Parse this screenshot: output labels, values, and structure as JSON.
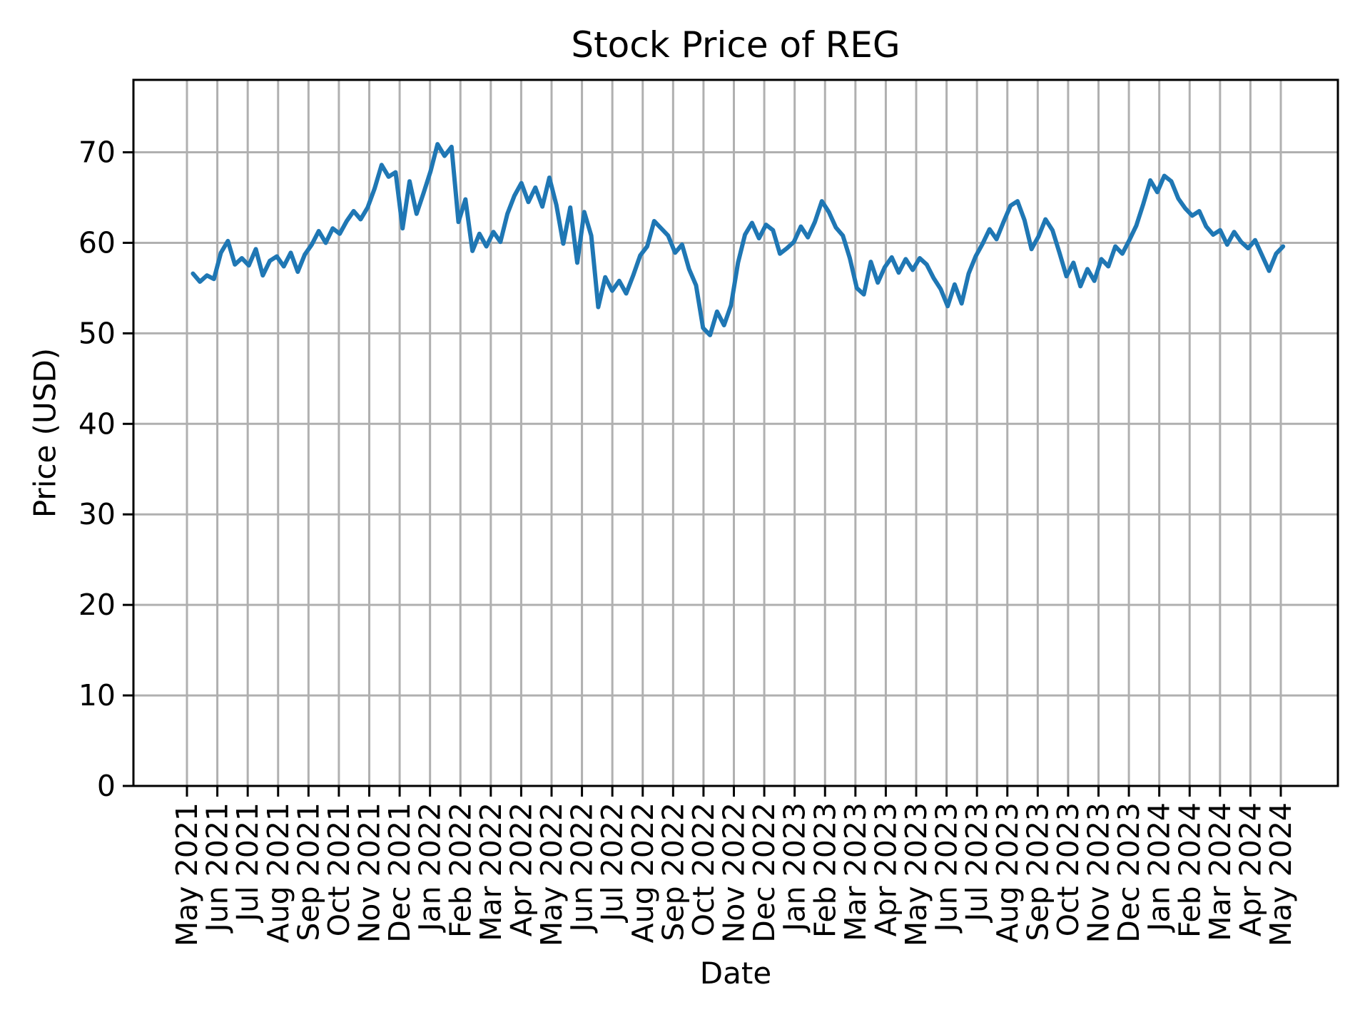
{
  "figure": {
    "title": "Stock Price of REG",
    "xlabel": "Date",
    "ylabel": "Price (USD)"
  },
  "style": {
    "background": "#ffffff",
    "line_color": "#1f77b4",
    "grid_color": "#b0b0b0",
    "axis_color": "#000000",
    "text_color": "#000000"
  },
  "chart_data": {
    "type": "line",
    "title": "Stock Price of REG",
    "xlabel": "Date",
    "ylabel": "Price (USD)",
    "ylim": [
      0,
      78
    ],
    "yticks": [
      0,
      10,
      20,
      30,
      40,
      50,
      60,
      70
    ],
    "grid": true,
    "legend_position": "none",
    "xtick_labels": [
      "May 2021",
      "Jun 2021",
      "Jul 2021",
      "Aug 2021",
      "Sep 2021",
      "Oct 2021",
      "Nov 2021",
      "Dec 2021",
      "Jan 2022",
      "Feb 2022",
      "Mar 2022",
      "Apr 2022",
      "May 2022",
      "Jun 2022",
      "Jul 2022",
      "Aug 2022",
      "Sep 2022",
      "Oct 2022",
      "Nov 2022",
      "Dec 2022",
      "Jan 2023",
      "Feb 2023",
      "Mar 2023",
      "Apr 2023",
      "May 2023",
      "Jun 2023",
      "Jul 2023",
      "Aug 2023",
      "Sep 2023",
      "Oct 2023",
      "Nov 2023",
      "Dec 2023",
      "Jan 2024",
      "Feb 2024",
      "Mar 2024",
      "Apr 2024",
      "May 2024"
    ],
    "x_first_point": "2021-05-07",
    "x_step_days": 7,
    "n_points": 157,
    "series": [
      {
        "name": "REG",
        "color": "#1f77b4",
        "values": [
          56.6,
          55.7,
          56.4,
          56.0,
          58.9,
          60.2,
          57.6,
          58.3,
          57.5,
          59.3,
          56.4,
          58.0,
          58.5,
          57.4,
          58.9,
          56.8,
          58.7,
          59.8,
          61.3,
          60.0,
          61.6,
          61.0,
          62.4,
          63.5,
          62.6,
          63.9,
          66.0,
          68.6,
          67.3,
          67.8,
          61.6,
          66.8,
          63.2,
          65.5,
          67.9,
          70.9,
          69.6,
          70.6,
          62.3,
          64.8,
          59.1,
          61.0,
          59.6,
          61.2,
          60.1,
          63.2,
          65.2,
          66.6,
          64.5,
          66.1,
          64.0,
          67.2,
          64.2,
          59.9,
          63.9,
          57.8,
          63.4,
          60.8,
          52.9,
          56.2,
          54.7,
          55.8,
          54.4,
          56.4,
          58.6,
          59.6,
          62.4,
          61.6,
          60.8,
          58.9,
          59.8,
          57.1,
          55.3,
          50.6,
          49.8,
          52.4,
          50.9,
          53.1,
          57.8,
          60.9,
          62.2,
          60.5,
          62.0,
          61.4,
          58.8,
          59.4,
          60.1,
          61.8,
          60.6,
          62.3,
          64.6,
          63.4,
          61.7,
          60.8,
          58.3,
          55.0,
          54.3,
          57.9,
          55.6,
          57.3,
          58.4,
          56.7,
          58.2,
          57.0,
          58.3,
          57.6,
          56.1,
          54.9,
          53.0,
          55.4,
          53.3,
          56.6,
          58.5,
          59.9,
          61.5,
          60.4,
          62.3,
          64.1,
          64.6,
          62.5,
          59.3,
          60.7,
          62.6,
          61.4,
          58.9,
          56.3,
          57.8,
          55.2,
          57.1,
          55.8,
          58.2,
          57.4,
          59.6,
          58.8,
          60.3,
          61.9,
          64.3,
          66.9,
          65.6,
          67.4,
          66.8,
          64.9,
          63.8,
          63.0,
          63.5,
          61.8,
          60.9,
          61.4,
          59.8,
          61.2,
          60.1,
          59.4,
          60.3,
          58.6,
          56.9,
          58.8,
          59.6
        ]
      }
    ]
  }
}
